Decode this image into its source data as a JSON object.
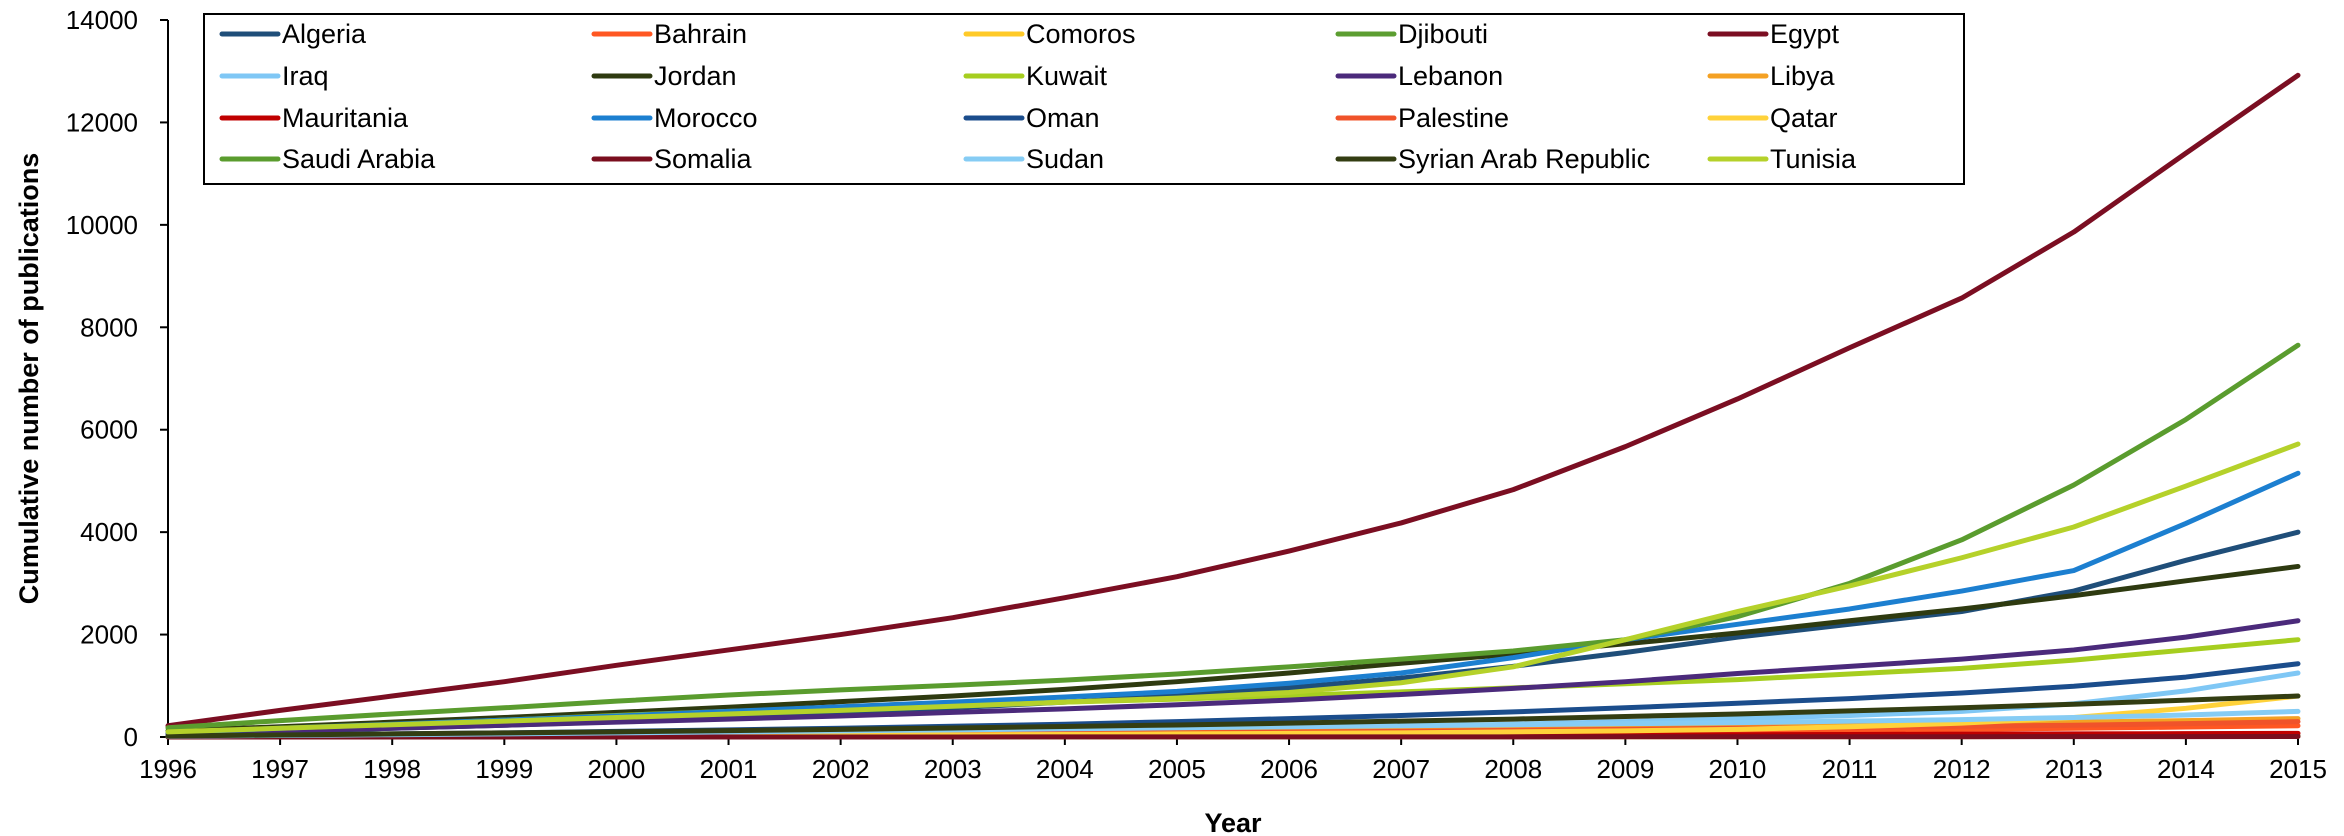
{
  "chart_data": {
    "type": "line",
    "xlabel": "Year",
    "ylabel": "Cumulative number of publications",
    "ylim": [
      0,
      14000
    ],
    "xlim": [
      1996,
      2015
    ],
    "y_ticks": [
      0,
      2000,
      4000,
      6000,
      8000,
      10000,
      12000,
      14000
    ],
    "x": [
      "1996",
      "1997",
      "1998",
      "1999",
      "2000",
      "2001",
      "2002",
      "2003",
      "2004",
      "2005",
      "2006",
      "2007",
      "2008",
      "2009",
      "2010",
      "2011",
      "2012",
      "2013",
      "2014",
      "2015"
    ],
    "legend_position": "top",
    "grid": false,
    "series": [
      {
        "name": "Algeria",
        "color": "#1F4E79",
        "values": [
          60,
          110,
          170,
          230,
          300,
          380,
          470,
          570,
          680,
          810,
          960,
          1150,
          1380,
          1650,
          1950,
          2200,
          2450,
          2850,
          3450,
          4000
        ]
      },
      {
        "name": "Bahrain",
        "color": "#FF5722",
        "values": [
          5,
          10,
          15,
          20,
          25,
          30,
          35,
          40,
          45,
          50,
          60,
          70,
          85,
          100,
          115,
          130,
          150,
          170,
          195,
          220
        ]
      },
      {
        "name": "Comoros",
        "color": "#FFCA28",
        "values": [
          0,
          0,
          0,
          0,
          0,
          1,
          1,
          1,
          2,
          2,
          3,
          3,
          4,
          5,
          6,
          7,
          8,
          9,
          10,
          12
        ]
      },
      {
        "name": "Djibouti",
        "color": "#5C9E31",
        "values": [
          0,
          0,
          1,
          1,
          2,
          2,
          3,
          3,
          4,
          5,
          6,
          7,
          8,
          9,
          10,
          12,
          14,
          16,
          18,
          20
        ]
      },
      {
        "name": "Egypt",
        "color": "#7B0E22",
        "values": [
          220,
          520,
          800,
          1080,
          1400,
          1700,
          2000,
          2330,
          2720,
          3130,
          3630,
          4180,
          4830,
          5670,
          6600,
          7600,
          8570,
          9860,
          11400,
          12920
        ]
      },
      {
        "name": "Iraq",
        "color": "#7FC7F5",
        "values": [
          10,
          20,
          30,
          45,
          60,
          75,
          90,
          110,
          130,
          150,
          180,
          210,
          250,
          300,
          360,
          420,
          500,
          650,
          900,
          1250
        ]
      },
      {
        "name": "Jordan",
        "color": "#2E3A10",
        "values": [
          120,
          200,
          290,
          380,
          480,
          580,
          690,
          800,
          930,
          1080,
          1250,
          1440,
          1620,
          1820,
          2030,
          2270,
          2500,
          2760,
          3050,
          3330
        ]
      },
      {
        "name": "Kuwait",
        "color": "#A6CE1F",
        "values": [
          80,
          160,
          240,
          330,
          420,
          500,
          560,
          620,
          680,
          740,
          810,
          880,
          960,
          1040,
          1120,
          1230,
          1340,
          1500,
          1700,
          1900
        ]
      },
      {
        "name": "Lebanon",
        "color": "#4B2A7B",
        "values": [
          70,
          120,
          170,
          230,
          290,
          350,
          410,
          480,
          550,
          630,
          720,
          830,
          950,
          1080,
          1240,
          1380,
          1520,
          1700,
          1950,
          2270
        ]
      },
      {
        "name": "Libya",
        "color": "#F4A123",
        "values": [
          10,
          20,
          30,
          40,
          50,
          60,
          70,
          80,
          90,
          100,
          115,
          130,
          150,
          170,
          200,
          230,
          260,
          290,
          320,
          360
        ]
      },
      {
        "name": "Mauritania",
        "color": "#C00000",
        "values": [
          2,
          4,
          6,
          8,
          10,
          12,
          15,
          18,
          21,
          24,
          28,
          32,
          36,
          40,
          45,
          50,
          55,
          60,
          66,
          72
        ]
      },
      {
        "name": "Morocco",
        "color": "#1C7FD0",
        "values": [
          90,
          170,
          250,
          330,
          410,
          500,
          590,
          680,
          780,
          890,
          1050,
          1250,
          1550,
          1900,
          2200,
          2500,
          2850,
          3250,
          4170,
          5150
        ]
      },
      {
        "name": "Oman",
        "color": "#1B4D8C",
        "values": [
          20,
          40,
          60,
          80,
          110,
          140,
          170,
          210,
          250,
          300,
          360,
          420,
          490,
          570,
          660,
          750,
          860,
          990,
          1170,
          1430
        ]
      },
      {
        "name": "Palestine",
        "color": "#F0532A",
        "values": [
          5,
          10,
          15,
          20,
          30,
          40,
          50,
          60,
          70,
          80,
          95,
          110,
          130,
          150,
          170,
          190,
          210,
          230,
          260,
          300
        ]
      },
      {
        "name": "Qatar",
        "color": "#FFD23A",
        "values": [
          5,
          10,
          15,
          20,
          25,
          30,
          35,
          40,
          50,
          60,
          70,
          80,
          100,
          120,
          150,
          200,
          270,
          380,
          560,
          800
        ]
      },
      {
        "name": "Saudi Arabia",
        "color": "#5A9C2E",
        "values": [
          180,
          320,
          450,
          570,
          700,
          820,
          920,
          1010,
          1110,
          1230,
          1370,
          1520,
          1680,
          1900,
          2350,
          3000,
          3850,
          4920,
          6200,
          7650
        ]
      },
      {
        "name": "Somalia",
        "color": "#7A0E1E",
        "values": [
          0,
          0,
          0,
          0,
          1,
          1,
          1,
          1,
          2,
          2,
          2,
          3,
          3,
          4,
          4,
          5,
          6,
          7,
          8,
          9
        ]
      },
      {
        "name": "Sudan",
        "color": "#86CCF4",
        "values": [
          15,
          30,
          45,
          60,
          80,
          100,
          120,
          140,
          160,
          180,
          200,
          220,
          240,
          260,
          280,
          310,
          340,
          380,
          430,
          500
        ]
      },
      {
        "name": "Syrian Arab Republic",
        "color": "#333D12",
        "values": [
          20,
          40,
          60,
          80,
          100,
          125,
          150,
          175,
          205,
          235,
          270,
          310,
          350,
          400,
          450,
          510,
          570,
          640,
          720,
          800
        ]
      },
      {
        "name": "Tunisia",
        "color": "#B5D12A",
        "values": [
          100,
          170,
          240,
          310,
          380,
          450,
          520,
          600,
          680,
          760,
          870,
          1060,
          1370,
          1900,
          2450,
          2950,
          3500,
          4100,
          4900,
          5720
        ]
      }
    ]
  }
}
